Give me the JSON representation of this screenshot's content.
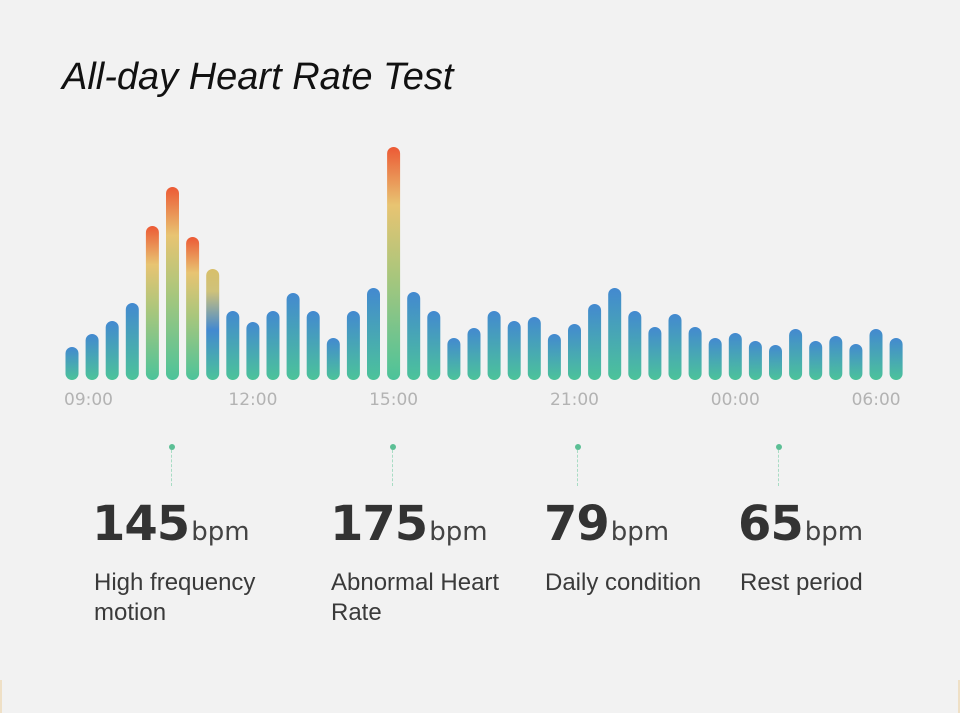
{
  "title": "All-day Heart Rate Test",
  "chart_data": {
    "type": "bar",
    "title": "All-day Heart Rate Test",
    "xlabel": "",
    "ylabel": "",
    "x_tick_labels": [
      "09:00",
      "12:00",
      "15:00",
      "21:00",
      "00:00",
      "06:00"
    ],
    "x_tick_bar_index": [
      0,
      9,
      16,
      25,
      33,
      41
    ],
    "grid": false,
    "legend": "none",
    "ylim": [
      0,
      240
    ],
    "values": [
      33,
      46,
      59,
      77,
      154,
      193,
      143,
      111,
      69,
      58,
      69,
      87,
      69,
      42,
      69,
      92,
      233,
      88,
      69,
      42,
      52,
      69,
      59,
      63,
      46,
      56,
      76,
      92,
      69,
      53,
      66,
      53,
      42,
      47,
      39,
      35,
      51,
      39,
      44,
      36,
      51,
      42
    ],
    "bar_colors": {
      "low_bottom": "#4cc39a",
      "low_top": "#4389d0",
      "high_mid": "#e8c472",
      "high_top": "#ec5a35"
    }
  },
  "stats": [
    {
      "value": "145",
      "unit": "bpm",
      "label": "High frequency motion"
    },
    {
      "value": "175",
      "unit": "bpm",
      "label": "Abnormal Heart Rate"
    },
    {
      "value": "79",
      "unit": "bpm",
      "label": "Daily condition"
    },
    {
      "value": "65",
      "unit": "bpm",
      "label": "Rest period"
    }
  ]
}
